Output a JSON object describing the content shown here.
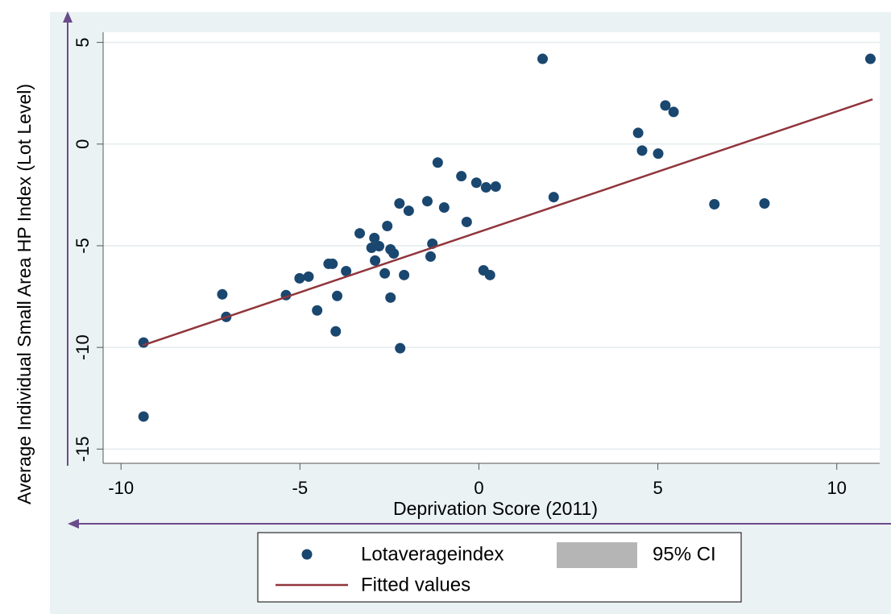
{
  "chart_data": {
    "type": "scatter",
    "xlabel": "Deprivation Score (2011)",
    "ylabel": "Average Individual Small Area HP Index (Lot Level)",
    "xlim": [
      -10.5,
      11.2
    ],
    "ylim": [
      -15.7,
      5.5
    ],
    "xticks": [
      -10,
      -5,
      0,
      5,
      10
    ],
    "yticks": [
      5,
      0,
      -5,
      -10,
      -15
    ],
    "grid": true,
    "series": [
      {
        "name": "Lotaverageindex",
        "type": "scatter",
        "color": "#1a476f",
        "x": [
          -9.37,
          -9.37,
          -7.17,
          -7.06,
          -5.39,
          -5.01,
          -4.76,
          -4.52,
          -4.2,
          -4.09,
          -4.0,
          -3.96,
          -3.71,
          -3.33,
          -3.0,
          -2.92,
          -2.9,
          -2.79,
          -2.63,
          -2.56,
          -2.47,
          -2.38,
          -2.47,
          -2.22,
          -2.2,
          -2.09,
          -1.96,
          -1.44,
          -1.35,
          -1.3,
          -1.15,
          -0.97,
          -0.49,
          -0.34,
          -0.07,
          0.13,
          0.2,
          0.31,
          0.47,
          1.78,
          2.09,
          4.45,
          4.56,
          5.01,
          5.21,
          5.44,
          6.58,
          7.98,
          10.94
        ],
        "values": [
          -9.76,
          -13.4,
          -7.39,
          -8.5,
          -7.43,
          -6.6,
          -6.52,
          -8.18,
          -5.89,
          -5.89,
          -9.21,
          -7.47,
          -6.25,
          -4.39,
          -5.1,
          -4.62,
          -5.73,
          -5.02,
          -6.36,
          -4.03,
          -5.18,
          -5.38,
          -7.55,
          -2.92,
          -10.04,
          -6.44,
          -3.28,
          -2.81,
          -5.53,
          -4.9,
          -0.91,
          -3.12,
          -1.58,
          -3.83,
          -1.9,
          -6.21,
          -2.13,
          -6.44,
          -2.09,
          4.19,
          -2.61,
          0.55,
          -0.32,
          -0.47,
          1.9,
          1.58,
          -2.96,
          -2.92,
          4.19
        ]
      },
      {
        "name": "Fitted values",
        "type": "line",
        "color": "#90353b",
        "x": [
          -9.4,
          11
        ],
        "values": [
          -9.9,
          2.2
        ]
      }
    ],
    "ci_legend": {
      "name": "95% CI",
      "color": "#b5b5b5"
    }
  }
}
